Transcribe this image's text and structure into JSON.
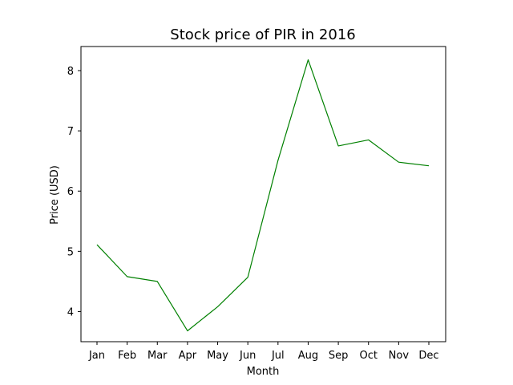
{
  "chart_data": {
    "type": "line",
    "title": "Stock price of PIR in 2016",
    "xlabel": "Month",
    "ylabel": "Price (USD)",
    "categories": [
      "Jan",
      "Feb",
      "Mar",
      "Apr",
      "May",
      "Jun",
      "Jul",
      "Aug",
      "Sep",
      "Oct",
      "Nov",
      "Dec"
    ],
    "series": [
      {
        "values": [
          5.11,
          4.58,
          4.5,
          3.68,
          4.08,
          4.57,
          6.51,
          8.18,
          6.75,
          6.85,
          6.48,
          6.42
        ],
        "color": "#008000"
      }
    ],
    "ylim": [
      3.5,
      8.4
    ],
    "yticks": [
      4,
      5,
      6,
      7,
      8
    ],
    "grid": false,
    "legend": "none"
  }
}
